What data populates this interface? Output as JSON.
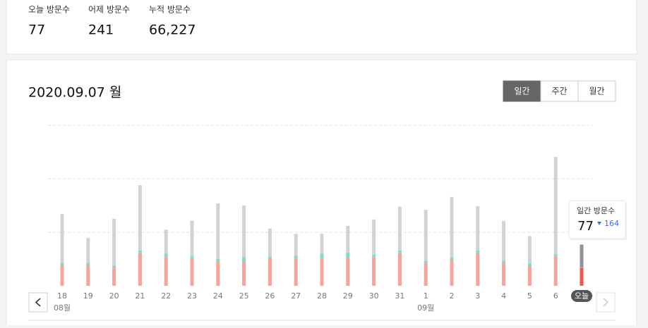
{
  "stats": [
    {
      "label": "오늘 방문수",
      "value": "77"
    },
    {
      "label": "어제 방문수",
      "value": "241"
    },
    {
      "label": "누적 방문수",
      "value": "66,227"
    }
  ],
  "date_title": "2020.09.07 월",
  "tabs": [
    {
      "label": "일간",
      "active": true
    },
    {
      "label": "주간",
      "active": false
    },
    {
      "label": "월간",
      "active": false
    }
  ],
  "chart_data": {
    "type": "bar",
    "stacked": true,
    "categories": [
      "18",
      "19",
      "20",
      "21",
      "22",
      "23",
      "24",
      "25",
      "26",
      "27",
      "28",
      "29",
      "30",
      "31",
      "1",
      "2",
      "3",
      "4",
      "5",
      "6",
      "오늘"
    ],
    "month_labels": [
      "08월",
      null,
      null,
      null,
      null,
      null,
      null,
      null,
      null,
      null,
      null,
      null,
      null,
      null,
      "09월",
      null,
      null,
      null,
      null,
      null,
      null
    ],
    "series": [
      {
        "color": "#f5a49b",
        "today_color": "#f0574a",
        "values": [
          39,
          39,
          34,
          62,
          53,
          51,
          46,
          46,
          50,
          51,
          51,
          54,
          53,
          62,
          43,
          49,
          62,
          43,
          38,
          55,
          34
        ]
      },
      {
        "color": "#7fdcc9",
        "today_color": "#5fcab3",
        "values": [
          4,
          4,
          4,
          4,
          7,
          4,
          4,
          8,
          4,
          5,
          9,
          8,
          5,
          4,
          4,
          4,
          4,
          4,
          4,
          4,
          1
        ]
      },
      {
        "color": "#cfd3d6",
        "today_color": "#8c9399",
        "values": [
          91,
          46,
          87,
          122,
          45,
          67,
          104,
          96,
          53,
          41,
          37,
          50,
          66,
          82,
          95,
          113,
          83,
          74,
          51,
          182,
          42
        ]
      }
    ],
    "ylim": [
      0,
      300
    ],
    "yticks": [
      100,
      200,
      300
    ],
    "grid": true
  },
  "tooltip": {
    "label": "일간 방문수",
    "value": 77,
    "change": 164
  }
}
